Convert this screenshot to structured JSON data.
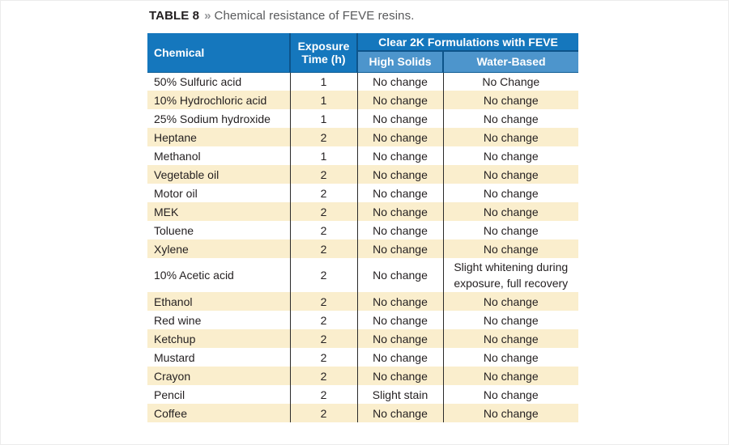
{
  "caption": {
    "label": "TABLE 8",
    "separator": "»",
    "text": "Chemical resistance of FEVE resins."
  },
  "table": {
    "columns": {
      "chemical": "Chemical",
      "exposure": "Exposure Time (h)",
      "group": "Clear 2K Formulations with FEVE",
      "high_solids": "High Solids",
      "water_based": "Water-Based"
    },
    "rows": [
      {
        "chemical": "50% Sulfuric acid",
        "exposure": "1",
        "high_solids": "No change",
        "water_based": "No Change"
      },
      {
        "chemical": "10% Hydrochloric acid",
        "exposure": "1",
        "high_solids": "No change",
        "water_based": "No change"
      },
      {
        "chemical": "25% Sodium hydroxide",
        "exposure": "1",
        "high_solids": "No change",
        "water_based": "No change"
      },
      {
        "chemical": "Heptane",
        "exposure": "2",
        "high_solids": "No change",
        "water_based": "No change"
      },
      {
        "chemical": "Methanol",
        "exposure": "1",
        "high_solids": "No change",
        "water_based": "No change"
      },
      {
        "chemical": "Vegetable oil",
        "exposure": "2",
        "high_solids": "No change",
        "water_based": "No change"
      },
      {
        "chemical": "Motor oil",
        "exposure": "2",
        "high_solids": "No change",
        "water_based": "No change"
      },
      {
        "chemical": "MEK",
        "exposure": "2",
        "high_solids": "No change",
        "water_based": "No change"
      },
      {
        "chemical": "Toluene",
        "exposure": "2",
        "high_solids": "No change",
        "water_based": "No change"
      },
      {
        "chemical": "Xylene",
        "exposure": "2",
        "high_solids": "No change",
        "water_based": "No change"
      },
      {
        "chemical": "10% Acetic acid",
        "exposure": "2",
        "high_solids": "No change",
        "water_based": "Slight whitening during exposure, full recovery"
      },
      {
        "chemical": "Ethanol",
        "exposure": "2",
        "high_solids": "No change",
        "water_based": "No change"
      },
      {
        "chemical": "Red wine",
        "exposure": "2",
        "high_solids": "No change",
        "water_based": "No change"
      },
      {
        "chemical": "Ketchup",
        "exposure": "2",
        "high_solids": "No change",
        "water_based": "No change"
      },
      {
        "chemical": "Mustard",
        "exposure": "2",
        "high_solids": "No change",
        "water_based": "No change"
      },
      {
        "chemical": "Crayon",
        "exposure": "2",
        "high_solids": "No change",
        "water_based": "No change"
      },
      {
        "chemical": "Pencil",
        "exposure": "2",
        "high_solids": "Slight stain",
        "water_based": "No change"
      },
      {
        "chemical": "Coffee",
        "exposure": "2",
        "high_solids": "No change",
        "water_based": "No change"
      }
    ]
  },
  "colors": {
    "header_blue": "#1577bd",
    "subheader_blue": "#4d95cc",
    "row_shade_cream": "#faeecd",
    "body_text": "#231f20",
    "caption_text": "#58595b"
  }
}
